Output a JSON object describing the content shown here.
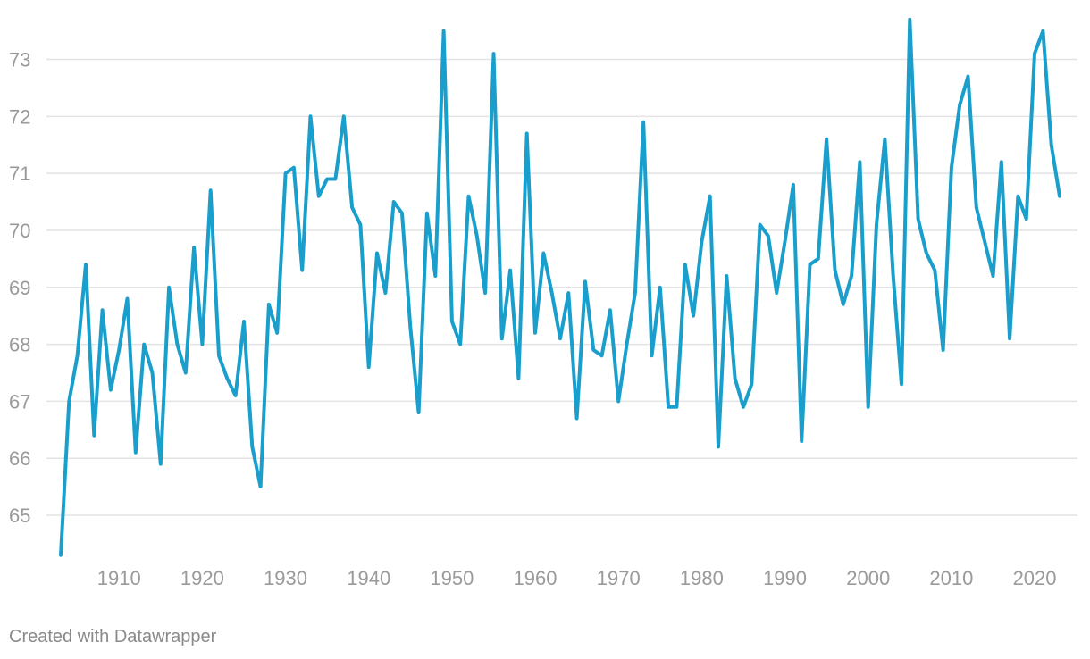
{
  "chart_data": {
    "type": "line",
    "title": "",
    "xlabel": "",
    "ylabel": "",
    "xlim": [
      1903,
      2023
    ],
    "ylim": [
      64.5,
      73.7
    ],
    "y_ticks": [
      65,
      66,
      67,
      68,
      69,
      70,
      71,
      72,
      73
    ],
    "x_ticks": [
      1910,
      1920,
      1930,
      1940,
      1950,
      1960,
      1970,
      1980,
      1990,
      2000,
      2010,
      2020
    ],
    "grid": "horizontal",
    "legend": "none",
    "line_color": "#1a9fcc",
    "x": [
      1903,
      1904,
      1905,
      1906,
      1907,
      1908,
      1909,
      1910,
      1911,
      1912,
      1913,
      1914,
      1915,
      1916,
      1917,
      1918,
      1919,
      1920,
      1921,
      1922,
      1923,
      1924,
      1925,
      1926,
      1927,
      1928,
      1929,
      1930,
      1931,
      1932,
      1933,
      1934,
      1935,
      1936,
      1937,
      1938,
      1939,
      1940,
      1941,
      1942,
      1943,
      1944,
      1945,
      1946,
      1947,
      1948,
      1949,
      1950,
      1951,
      1952,
      1953,
      1954,
      1955,
      1956,
      1957,
      1958,
      1959,
      1960,
      1961,
      1962,
      1963,
      1964,
      1965,
      1966,
      1967,
      1968,
      1969,
      1970,
      1971,
      1972,
      1973,
      1974,
      1975,
      1976,
      1977,
      1978,
      1979,
      1980,
      1981,
      1982,
      1983,
      1984,
      1985,
      1986,
      1987,
      1988,
      1989,
      1990,
      1991,
      1992,
      1993,
      1994,
      1995,
      1996,
      1997,
      1998,
      1999,
      2000,
      2001,
      2002,
      2003,
      2004,
      2005,
      2006,
      2007,
      2008,
      2009,
      2010,
      2011,
      2012,
      2013,
      2014,
      2015,
      2016,
      2017,
      2018,
      2019,
      2020,
      2021,
      2022,
      2023
    ],
    "series": [
      {
        "values": [
          64.3,
          67.0,
          67.8,
          69.4,
          66.4,
          68.6,
          67.2,
          67.9,
          68.8,
          66.1,
          68.0,
          67.5,
          65.9,
          69.0,
          68.0,
          67.5,
          69.7,
          68.0,
          70.7,
          67.8,
          67.4,
          67.1,
          68.4,
          66.2,
          65.5,
          68.7,
          68.2,
          71.0,
          71.1,
          69.3,
          72.0,
          70.6,
          70.9,
          70.9,
          72.0,
          70.4,
          70.1,
          67.6,
          69.6,
          68.9,
          70.5,
          70.3,
          68.3,
          66.8,
          70.3,
          69.2,
          73.5,
          68.4,
          68.0,
          70.6,
          69.9,
          68.9,
          73.1,
          68.1,
          69.3,
          67.4,
          71.7,
          68.2,
          69.6,
          68.9,
          68.1,
          68.9,
          66.7,
          69.1,
          67.9,
          67.8,
          68.6,
          67.0,
          68.0,
          68.9,
          71.9,
          67.8,
          69.0,
          66.9,
          66.9,
          69.4,
          68.5,
          69.8,
          70.6,
          66.2,
          69.2,
          67.4,
          66.9,
          67.3,
          70.1,
          69.9,
          68.9,
          69.8,
          70.8,
          66.3,
          69.4,
          69.5,
          71.6,
          69.3,
          68.7,
          69.2,
          71.2,
          66.9,
          70.1,
          71.6,
          69.2,
          67.3,
          73.7,
          70.2,
          69.6,
          69.3,
          67.9,
          71.1,
          72.2,
          72.7,
          70.4,
          69.8,
          69.2,
          71.2,
          68.1,
          70.6,
          70.2,
          73.1,
          73.5,
          71.5,
          70.6
        ]
      }
    ]
  },
  "footer": {
    "credit": "Created with Datawrapper"
  }
}
